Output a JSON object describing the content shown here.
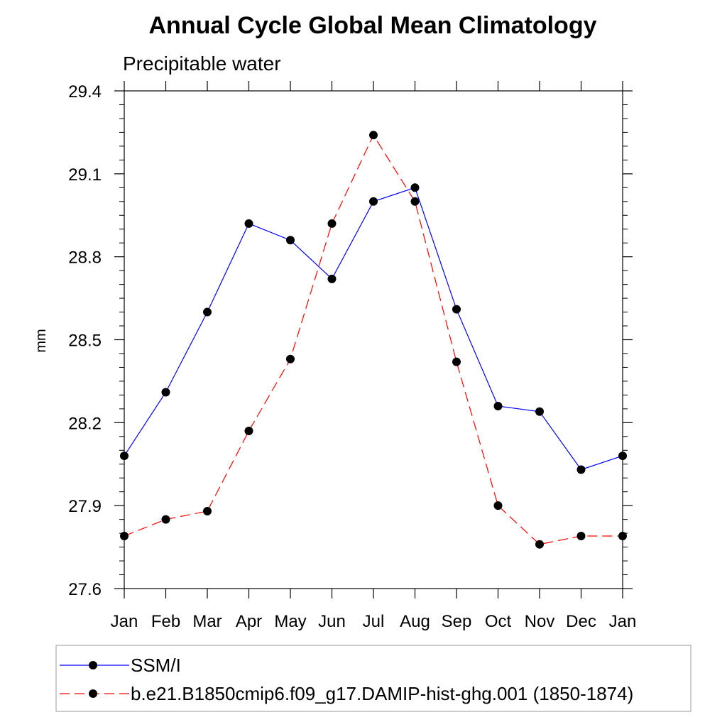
{
  "chart_data": {
    "type": "line",
    "title": "Annual Cycle Global Mean Climatology",
    "subtitle": "Precipitable water",
    "xlabel": "",
    "ylabel": "mm",
    "categories": [
      "Jan",
      "Feb",
      "Mar",
      "Apr",
      "May",
      "Jun",
      "Jul",
      "Aug",
      "Sep",
      "Oct",
      "Nov",
      "Dec",
      "Jan"
    ],
    "ylim": [
      27.6,
      29.4
    ],
    "yticks": [
      "27.6",
      "27.9",
      "28.2",
      "28.5",
      "28.8",
      "29.1",
      "29.4"
    ],
    "legend_position": "bottom",
    "series": [
      {
        "name": "SSM/I",
        "color": "#0000ff",
        "dash": "solid",
        "values": [
          28.08,
          28.31,
          28.6,
          28.92,
          28.86,
          28.72,
          29.0,
          29.05,
          28.61,
          28.26,
          28.24,
          28.03,
          28.08
        ]
      },
      {
        "name": "b.e21.B1850cmip6.f09_g17.DAMIP-hist-ghg.001 (1850-1874)",
        "color": "#ff0000",
        "dash": "dashed",
        "values": [
          27.79,
          27.85,
          27.88,
          28.17,
          28.43,
          28.92,
          29.24,
          29.0,
          28.42,
          27.9,
          27.76,
          27.79,
          27.79
        ]
      }
    ]
  }
}
